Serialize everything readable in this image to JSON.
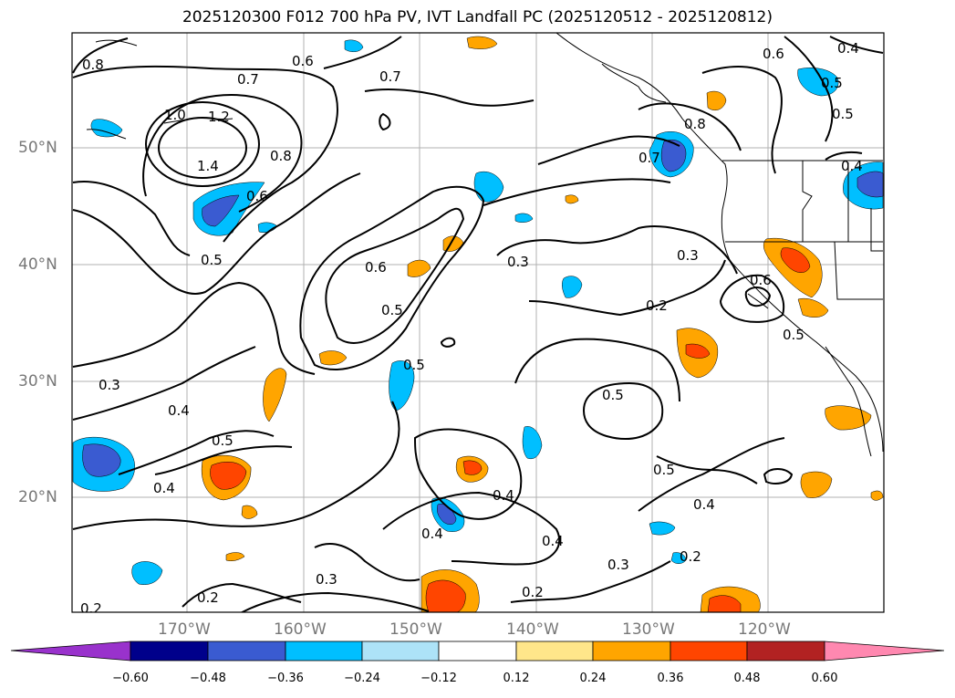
{
  "title": "2025120300 F012 700 hPa PV, IVT Landfall PC (2025120512 - 2025120812)",
  "latitude_labels": [
    "50°N",
    "40°N",
    "30°N",
    "20°N"
  ],
  "longitude_labels": [
    "170°W",
    "160°W",
    "150°W",
    "140°W",
    "130°W",
    "120°W"
  ],
  "contour_labels": [
    "0.8",
    "0.7",
    "0.7",
    "0.6",
    "1.0",
    "1.2",
    "1.4",
    "0.8",
    "0.6",
    "0.5",
    "0.6",
    "0.5",
    "0.3",
    "0.3",
    "0.4",
    "0.5",
    "0.4",
    "0.5",
    "0.4",
    "0.3",
    "0.2",
    "0.2",
    "0.4",
    "0.4",
    "0.2",
    "0.3",
    "0.2",
    "0.5",
    "0.5",
    "0.4",
    "0.2",
    "0.3",
    "0.6",
    "0.5",
    "0.8",
    "0.7",
    "0.6",
    "0.4",
    "0.5",
    "0.5",
    "0.4"
  ],
  "colorbar": {
    "ticks": [
      "−0.60",
      "−0.48",
      "−0.36",
      "−0.24",
      "−0.12",
      "0.12",
      "0.24",
      "0.36",
      "0.48",
      "0.60"
    ],
    "colors": [
      "#9932cc",
      "#00008b",
      "#3a5bd1",
      "#00bfff",
      "#ade3f8",
      "#ffffff",
      "#ffe68a",
      "#ffa500",
      "#ff4500",
      "#b22222",
      "#ff88b0"
    ]
  }
}
